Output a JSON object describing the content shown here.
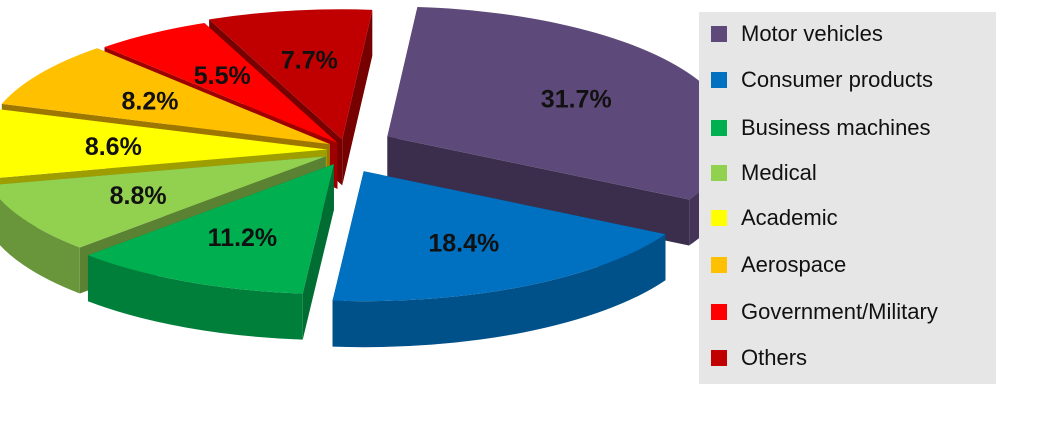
{
  "chart_data": {
    "type": "pie",
    "title": "",
    "categories": [
      "Motor vehicles",
      "Consumer products",
      "Business machines",
      "Medical",
      "Academic",
      "Aerospace",
      "Government/Military",
      "Others"
    ],
    "values": [
      31.7,
      18.4,
      11.2,
      8.8,
      8.6,
      8.2,
      5.5,
      7.7
    ],
    "value_labels": [
      "31.7%",
      "18.4%",
      "11.2%",
      "8.8%",
      "8.6%",
      "8.2%",
      "5.5%",
      "7.7%"
    ],
    "colors": [
      "#5e4a7a",
      "#0070c0",
      "#00b050",
      "#92d050",
      "#ffff00",
      "#ffc000",
      "#ff0000",
      "#c00000"
    ],
    "style": "3d-exploded",
    "legend_position": "right"
  },
  "legend": {
    "items": [
      {
        "label": "Motor vehicles",
        "color": "#5e4a7a"
      },
      {
        "label": "Consumer products",
        "color": "#0070c0"
      },
      {
        "label": "Business machines",
        "color": "#00b050"
      },
      {
        "label": "Medical",
        "color": "#92d050"
      },
      {
        "label": "Academic",
        "color": "#ffff00"
      },
      {
        "label": "Aerospace",
        "color": "#ffc000"
      },
      {
        "label": "Government/Military",
        "color": "#ff0000"
      },
      {
        "label": "Others",
        "color": "#c00000"
      }
    ]
  }
}
